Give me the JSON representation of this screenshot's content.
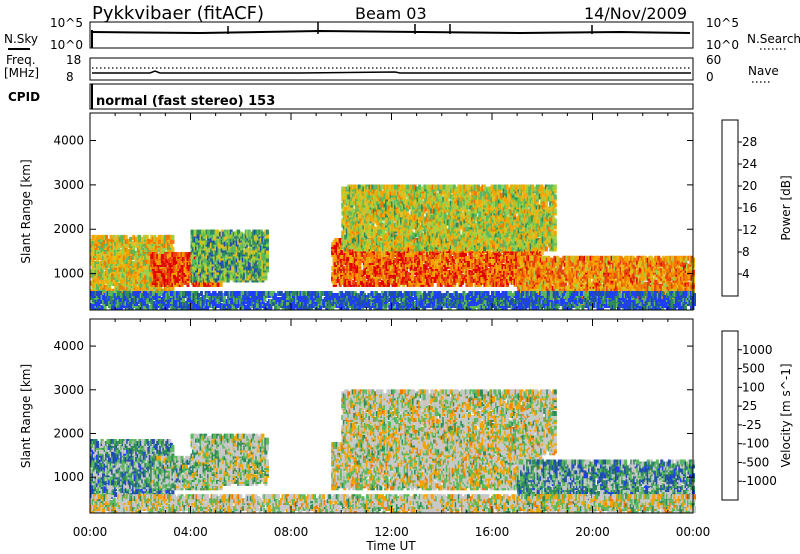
{
  "header": {
    "station": "Pykkvibaer (fitACF)",
    "beam": "Beam 03",
    "date": "14/Nov/2009"
  },
  "status_panels": {
    "nsky_label": "N.Sky",
    "nsky_ticks": [
      "10^5",
      "10^0"
    ],
    "nsearch_label": "N.Search",
    "nsearch_ticks": [
      "10^5",
      "10^0"
    ],
    "freq_label": "Freq.",
    "freq_unit": "[MHz]",
    "freq_ticks": [
      "18",
      "8"
    ],
    "nave_label": "Nave",
    "nave_ticks": [
      "60",
      "0"
    ],
    "cpid_label": "CPID",
    "cpid_text": "normal (fast stereo) 153"
  },
  "chart_data": [
    {
      "type": "heatmap",
      "name": "power",
      "ylabel": "Slant Range [km]",
      "xlabel": "Time UT",
      "x_ticks": [
        "00:00",
        "04:00",
        "08:00",
        "12:00",
        "16:00",
        "20:00",
        "00:00"
      ],
      "xlim_hours": [
        0,
        24
      ],
      "y_ticks": [
        1000,
        2000,
        3000,
        4000
      ],
      "ylim": [
        180,
        4620
      ],
      "colorbar": {
        "label": "Power [dB]",
        "ticks": [
          "4",
          "8",
          "12",
          "16",
          "20",
          "24",
          "28"
        ],
        "colors": [
          "#1f3cff",
          "#1f4fa8",
          "#2f8a5a",
          "#5cb85c",
          "#9ad14a",
          "#e0c020",
          "#f5a300",
          "#f07800",
          "#e84010",
          "#e00000"
        ]
      },
      "regions": [
        {
          "t": [
            0.0,
            3.3
          ],
          "r": [
            500,
            1800
          ],
          "level": 0.55
        },
        {
          "t": [
            2.4,
            5.2
          ],
          "r": [
            700,
            1400
          ],
          "level": 0.85
        },
        {
          "t": [
            4.0,
            7.0
          ],
          "r": [
            800,
            1900
          ],
          "level": 0.35
        },
        {
          "t": [
            9.6,
            18.0
          ],
          "r": [
            700,
            1700
          ],
          "level": 0.8
        },
        {
          "t": [
            10.0,
            18.5
          ],
          "r": [
            1500,
            2900
          ],
          "level": 0.5
        },
        {
          "t": [
            17.0,
            24.0
          ],
          "r": [
            300,
            1300
          ],
          "level": 0.7
        },
        {
          "t": [
            0.0,
            24.0
          ],
          "r": [
            180,
            500
          ],
          "level": 0.15
        }
      ]
    },
    {
      "type": "heatmap",
      "name": "velocity",
      "ylabel": "Slant Range [km]",
      "xlabel": "Time UT",
      "x_ticks": [
        "00:00",
        "04:00",
        "08:00",
        "12:00",
        "16:00",
        "20:00",
        "00:00"
      ],
      "xlim_hours": [
        0,
        24
      ],
      "y_ticks": [
        1000,
        2000,
        3000,
        4000
      ],
      "ylim": [
        180,
        4620
      ],
      "colorbar": {
        "label": "Velocity [m s^-1]",
        "ticks": [
          "1000",
          "500",
          "100",
          "25",
          "-25",
          "-100",
          "-500",
          "-1000"
        ],
        "colors": [
          "#1f3cff",
          "#1f4fa8",
          "#2f8a5a",
          "#5cb85c",
          "#c8c8c8",
          "#c8c8c8",
          "#f5a300",
          "#f07800",
          "#e84010",
          "#e00000"
        ]
      },
      "regions": [
        {
          "t": [
            0.0,
            3.3
          ],
          "r": [
            500,
            1800
          ],
          "level": 0.3
        },
        {
          "t": [
            2.4,
            5.2
          ],
          "r": [
            700,
            1400
          ],
          "level": 0.4
        },
        {
          "t": [
            4.0,
            7.0
          ],
          "r": [
            800,
            1900
          ],
          "level": 0.45
        },
        {
          "t": [
            9.6,
            18.0
          ],
          "r": [
            700,
            1700
          ],
          "level": 0.5
        },
        {
          "t": [
            10.0,
            18.5
          ],
          "r": [
            1500,
            2900
          ],
          "level": 0.5
        },
        {
          "t": [
            17.0,
            24.0
          ],
          "r": [
            300,
            1300
          ],
          "level": 0.3
        },
        {
          "t": [
            0.0,
            24.0
          ],
          "r": [
            180,
            500
          ],
          "level": 0.5
        }
      ]
    }
  ]
}
